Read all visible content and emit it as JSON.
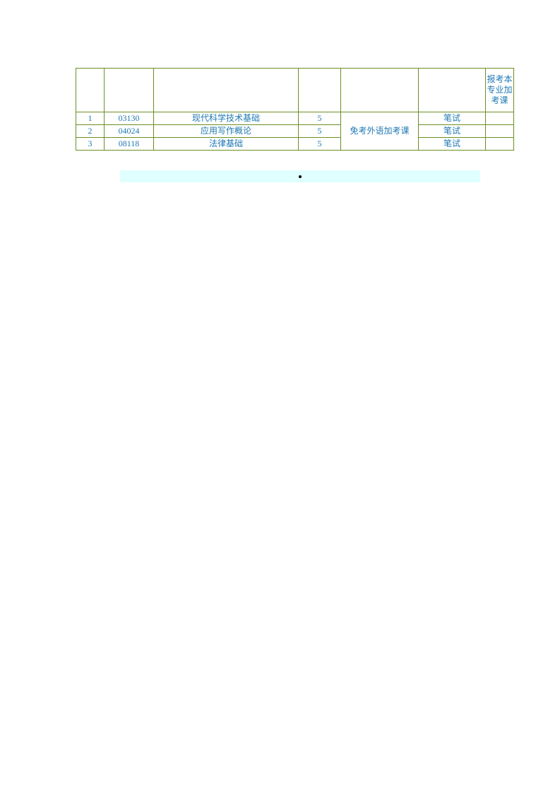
{
  "table": {
    "border_color": "#6b8e23",
    "text_color": "#2079b3",
    "font_size": 12,
    "header_note": "报考本专业加考课",
    "merged_note": "免考外语加考课",
    "columns": [
      "",
      "",
      "",
      "",
      "",
      "",
      ""
    ],
    "rows": [
      {
        "idx": "1",
        "code": "03130",
        "name": "现代科学技术基础",
        "credit": "5",
        "exam": "笔试",
        "extra": ""
      },
      {
        "idx": "2",
        "code": "04024",
        "name": "应用写作概论",
        "credit": "5",
        "exam": "笔试",
        "extra": ""
      },
      {
        "idx": "3",
        "code": "08118",
        "name": "法律基础",
        "credit": "5",
        "exam": "笔试",
        "extra": ""
      }
    ]
  },
  "highlight": {
    "background_color": "#e0ffff"
  }
}
